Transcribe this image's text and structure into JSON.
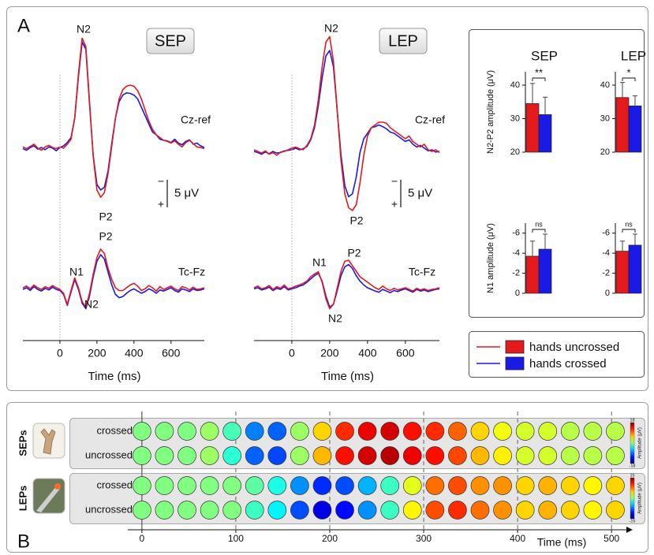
{
  "panel_labels": [
    "A",
    "B"
  ],
  "legend": [
    {
      "name": "hands uncrossed",
      "color": "#e41a1c"
    },
    {
      "name": "hands crossed",
      "color": "#1a1ae6"
    }
  ],
  "chart_data": [
    {
      "type": "line",
      "title": "SEP",
      "trace_label": "Cz-ref",
      "x": [
        -200,
        -180,
        -160,
        -140,
        -120,
        -100,
        -80,
        -60,
        -40,
        -20,
        0,
        20,
        40,
        60,
        80,
        100,
        120,
        140,
        160,
        180,
        200,
        220,
        240,
        260,
        280,
        300,
        320,
        340,
        360,
        380,
        400,
        420,
        440,
        460,
        480,
        500,
        520,
        540,
        560,
        580,
        600,
        620,
        640,
        660,
        680,
        700,
        720,
        740,
        760,
        780
      ],
      "xlim": [
        -200,
        780
      ],
      "ylim": [
        11,
        -21
      ],
      "series": [
        {
          "color": "#e41a1c",
          "values": [
            0.2,
            0.5,
            0.1,
            -0.3,
            0.4,
            0.8,
            0.2,
            -0.1,
            0.3,
            0.5,
            0.2,
            0.4,
            -0.3,
            -1.2,
            -5,
            -13,
            -19.5,
            -18,
            -8,
            2,
            8,
            9.3,
            8.5,
            5,
            0,
            -5,
            -8.5,
            -10.2,
            -10.8,
            -11,
            -10.8,
            -10,
            -8.5,
            -6.5,
            -4.5,
            -3,
            -2,
            -1.5,
            -1,
            -0.8,
            -0.5,
            -0.9,
            -0.3,
            0.2,
            -0.6,
            -1,
            -0.4,
            0.2,
            0.3,
            0.5
          ]
        },
        {
          "color": "#1a1ae6",
          "values": [
            0.5,
            0.8,
            0.3,
            0,
            0.6,
            0.3,
            0.7,
            0.2,
            0.4,
            0.9,
            0.3,
            0,
            -0.6,
            -1.5,
            -5,
            -12.5,
            -18.8,
            -17.5,
            -7.5,
            1.8,
            7,
            8,
            7.5,
            4.5,
            -0.5,
            -5,
            -8,
            -9.2,
            -9.6,
            -9.5,
            -9.2,
            -8.5,
            -7,
            -5.5,
            -4,
            -2.5,
            -2,
            -1.2,
            -1,
            -0.9,
            -0.6,
            -1.2,
            -0.5,
            -0.2,
            -0.8,
            -1.1,
            -0.3,
            -0.5,
            0,
            0.3
          ]
        }
      ],
      "annotations": [
        "N2",
        "P2"
      ],
      "scale_bar": {
        "value": 5,
        "label": "5 μV",
        "top": "−",
        "bottom": "+"
      }
    },
    {
      "type": "line",
      "trace_label": "Tc-Fz",
      "x": [
        -200,
        -180,
        -160,
        -140,
        -120,
        -100,
        -80,
        -60,
        -40,
        -20,
        0,
        20,
        40,
        60,
        80,
        100,
        120,
        140,
        160,
        180,
        200,
        220,
        240,
        260,
        280,
        300,
        320,
        340,
        360,
        380,
        400,
        420,
        440,
        460,
        480,
        500,
        520,
        540,
        560,
        580,
        600,
        620,
        640,
        660,
        680,
        700,
        720,
        740,
        760,
        780
      ],
      "xlim": [
        -200,
        780
      ],
      "ylim": [
        8,
        -9.5
      ],
      "xticks": [
        0,
        200,
        400,
        600
      ],
      "xlabel": "Time (ms)",
      "series": [
        {
          "color": "#e41a1c",
          "values": [
            0,
            -0.3,
            0.2,
            -0.5,
            0,
            0.3,
            -0.2,
            0.1,
            -0.4,
            0,
            0.3,
            1,
            3,
            0.5,
            -1.8,
            0,
            2.5,
            3.5,
            1,
            -2.5,
            -5.5,
            -7,
            -6.2,
            -3.5,
            -1.5,
            0,
            0.5,
            0.5,
            0,
            -0.5,
            -0.8,
            -0.3,
            0.5,
            0.2,
            -0.4,
            0,
            0.6,
            -0.2,
            0.3,
            0,
            -0.3,
            0.2,
            0.5,
            -0.2,
            0,
            0.4,
            -0.1,
            0.3,
            0.2,
            0
          ]
        },
        {
          "color": "#1a1ae6",
          "values": [
            0.3,
            0,
            0.5,
            -0.2,
            0.3,
            0.6,
            0.1,
            0.4,
            -0.1,
            0.3,
            0.5,
            1.2,
            3.2,
            0.8,
            -1.5,
            0.3,
            2.8,
            3.8,
            1.5,
            -2,
            -4.8,
            -6,
            -5.2,
            -2.8,
            -0.5,
            1.2,
            1.8,
            1.6,
            1,
            0.5,
            0.2,
            0.6,
            1,
            0.7,
            0.2,
            0.5,
            1,
            0.4,
            0.6,
            0.3,
            0,
            0.5,
            0.8,
            0.2,
            0.4,
            0.7,
            0.2,
            0.5,
            0.4,
            0.2
          ]
        }
      ],
      "annotations": [
        "P2",
        "N1",
        "N2"
      ]
    },
    {
      "type": "line",
      "title": "LEP",
      "trace_label": "Cz-ref",
      "x": [
        -200,
        -180,
        -160,
        -140,
        -120,
        -100,
        -80,
        -60,
        -40,
        -20,
        0,
        20,
        40,
        60,
        80,
        100,
        120,
        140,
        160,
        180,
        200,
        220,
        240,
        260,
        280,
        300,
        320,
        340,
        360,
        380,
        400,
        420,
        440,
        460,
        480,
        500,
        520,
        540,
        560,
        580,
        600,
        620,
        640,
        660,
        680,
        700,
        720,
        740,
        760,
        780
      ],
      "xlim": [
        -200,
        780
      ],
      "ylim": [
        12,
        -22
      ],
      "series": [
        {
          "color": "#e41a1c",
          "values": [
            0,
            0.3,
            0.6,
            0.2,
            0.8,
            0.5,
            1,
            0.4,
            0.3,
            0,
            -0.3,
            -0.5,
            -0.2,
            0,
            -0.8,
            -2,
            -4.5,
            -9,
            -15,
            -19.5,
            -20.5,
            -16,
            -7,
            2,
            8,
            10.5,
            11,
            10,
            6,
            1,
            -2.5,
            -4,
            -4.5,
            -5,
            -5,
            -4.8,
            -4,
            -3.5,
            -3,
            -2.5,
            -2,
            -2.5,
            -1.5,
            -1,
            -0.5,
            -1,
            0,
            0.3,
            0,
            0.5
          ]
        },
        {
          "color": "#1a1ae6",
          "values": [
            0.3,
            0.5,
            0.8,
            0.4,
            0.7,
            0.3,
            0.6,
            0.5,
            0.2,
            0.1,
            0,
            -0.3,
            0,
            -0.2,
            -0.6,
            -1.8,
            -4,
            -8,
            -13,
            -17,
            -18,
            -15,
            -7,
            1,
            6.5,
            8.5,
            8,
            5,
            0.5,
            -2,
            -3,
            -4,
            -4.2,
            -4.5,
            -4.2,
            -3.8,
            -3.2,
            -3,
            -2.5,
            -2,
            -1.5,
            -1.8,
            -1,
            -0.5,
            -0.8,
            -0.3,
            0.2,
            0,
            0.4,
            0.3
          ]
        }
      ],
      "annotations": [
        "N2",
        "P2"
      ],
      "scale_bar": {
        "value": 5,
        "label": "5 μV",
        "top": "−",
        "bottom": "+"
      }
    },
    {
      "type": "line",
      "trace_label": "Tc-Fz",
      "x": [
        -200,
        -180,
        -160,
        -140,
        -120,
        -100,
        -80,
        -60,
        -40,
        -20,
        0,
        20,
        40,
        60,
        80,
        100,
        120,
        140,
        160,
        180,
        200,
        220,
        240,
        260,
        280,
        300,
        320,
        340,
        360,
        380,
        400,
        420,
        440,
        460,
        480,
        500,
        520,
        540,
        560,
        580,
        600,
        620,
        640,
        660,
        680,
        700,
        720,
        740,
        760,
        780
      ],
      "xlim": [
        -200,
        780
      ],
      "ylim": [
        8,
        -9.5
      ],
      "xticks": [
        0,
        200,
        400,
        600
      ],
      "xlabel": "Time (ms)",
      "series": [
        {
          "color": "#e41a1c",
          "values": [
            0,
            -0.3,
            0.2,
            0,
            -0.4,
            0.3,
            -0.2,
            0.1,
            -0.5,
            0.2,
            0,
            -0.3,
            -0.5,
            -0.8,
            -1.2,
            -2,
            -2.5,
            -2.9,
            -1,
            2,
            3.8,
            3,
            0,
            -3,
            -4.8,
            -5,
            -4,
            -3,
            -2,
            -1.5,
            -1,
            -0.5,
            0,
            0.3,
            -0.3,
            0.2,
            0.5,
            0.1,
            0.4,
            0.2,
            0,
            0.3,
            0.6,
            0.1,
            0.4,
            0.2,
            0.5,
            0.3,
            0.2,
            0
          ]
        },
        {
          "color": "#1a1ae6",
          "values": [
            0.2,
            0,
            0.4,
            0.2,
            -0.1,
            0.5,
            0.1,
            0.3,
            -0.2,
            0.4,
            0.2,
            0,
            -0.3,
            -0.5,
            -1,
            -1.6,
            -2.2,
            -2.6,
            -1.2,
            1.5,
            3.5,
            3,
            0.5,
            -2.2,
            -3.8,
            -4.2,
            -3.5,
            -2.2,
            -1.2,
            -0.5,
            0,
            0.3,
            0.6,
            0.8,
            0.3,
            0.6,
            0.9,
            0.5,
            0.7,
            0.4,
            0.2,
            0.5,
            0.8,
            0.3,
            0.6,
            0.4,
            0.7,
            0.5,
            0.3,
            0.2
          ]
        }
      ],
      "annotations": [
        "N1",
        "P2",
        "N2"
      ]
    },
    {
      "type": "bar",
      "title": "SEP",
      "ylabel": "N2-P2 amplitude (μV)",
      "ylim": [
        20,
        44
      ],
      "yticks": [
        20,
        30,
        40
      ],
      "values": [
        34.5,
        31.2
      ],
      "errors": [
        6,
        5.2
      ],
      "colors": [
        "#e41a1c",
        "#1a1ae6"
      ],
      "significance": "**"
    },
    {
      "type": "bar",
      "title": "LEP",
      "ylim": [
        20,
        44
      ],
      "yticks": [
        20,
        30,
        40
      ],
      "values": [
        36.3,
        33.8
      ],
      "errors": [
        4.5,
        3
      ],
      "colors": [
        "#e41a1c",
        "#1a1ae6"
      ],
      "significance": "*"
    },
    {
      "type": "bar",
      "ylabel": "N1 amplitude (μV)",
      "ylim": [
        0,
        -7
      ],
      "yticks": [
        0,
        -2,
        -4,
        -6
      ],
      "values": [
        -3.7,
        -4.4
      ],
      "errors": [
        1.5,
        1.5
      ],
      "colors": [
        "#e41a1c",
        "#1a1ae6"
      ],
      "significance": "ns"
    },
    {
      "type": "bar",
      "ylim": [
        0,
        -7
      ],
      "yticks": [
        0,
        -2,
        -4,
        -6
      ],
      "values": [
        -4.2,
        -4.8
      ],
      "errors": [
        1,
        1.1
      ],
      "colors": [
        "#e41a1c",
        "#1a1ae6"
      ],
      "significance": "ns"
    },
    {
      "type": "topomap",
      "x": [
        0,
        24,
        48,
        72,
        96,
        120,
        144,
        168,
        192,
        216,
        240,
        264,
        288,
        312,
        336,
        360,
        384,
        408,
        432,
        456,
        480,
        504
      ],
      "xlim": [
        -15,
        520
      ],
      "xticks": [
        0,
        100,
        200,
        300,
        400,
        500
      ],
      "xlabel": "Time (ms)",
      "groups": [
        {
          "name": "SEPs",
          "clim": [
            -18,
            18
          ],
          "cticks": [
            18,
            -18
          ],
          "colorbar_label": "Amplitude (μV)",
          "rows": [
            {
              "name": "crossed",
              "values": [
                0,
                0,
                0,
                1,
                -2,
                -9,
                -10,
                1,
                6,
                12,
                14,
                15,
                13,
                12,
                10,
                6,
                4,
                3,
                3,
                2,
                2,
                2
              ]
            },
            {
              "name": "uncrossed",
              "values": [
                0,
                0,
                0,
                1,
                -3,
                -10,
                -11,
                1,
                7,
                13,
                15,
                16,
                14,
                13,
                11,
                7,
                5,
                3,
                3,
                2,
                2,
                2
              ]
            }
          ]
        },
        {
          "name": "LEPs",
          "clim": [
            -15,
            15
          ],
          "cticks": [
            15,
            -15
          ],
          "colorbar_label": "Amplitude (μV)",
          "rows": [
            {
              "name": "crossed",
              "values": [
                0,
                0,
                0,
                0,
                0,
                -1,
                -3,
                -7,
                -10,
                -9,
                -6,
                -2,
                3,
                8,
                9,
                7,
                7,
                5,
                6,
                5,
                4,
                5
              ]
            },
            {
              "name": "uncrossed",
              "values": [
                0,
                0,
                0,
                0,
                0,
                -2,
                -4,
                -9,
                -12,
                -11,
                -7,
                -2,
                4,
                9,
                10,
                8,
                7,
                5,
                6,
                5,
                4,
                5
              ]
            }
          ]
        }
      ]
    }
  ]
}
